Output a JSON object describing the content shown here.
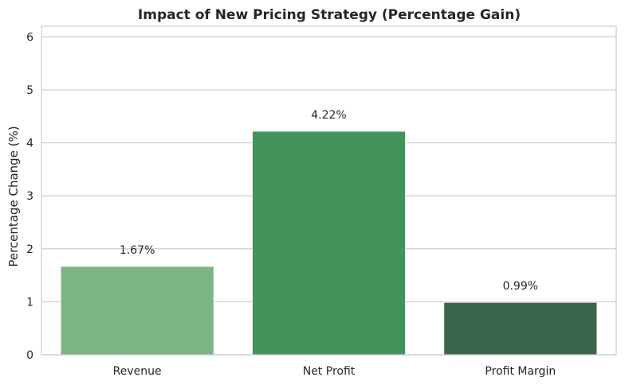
{
  "chart_data": {
    "type": "bar",
    "title": "Impact of New Pricing Strategy (Percentage Gain)",
    "xlabel": "",
    "ylabel": "Percentage Change (%)",
    "categories": [
      "Revenue",
      "Net Profit",
      "Profit Margin"
    ],
    "values": [
      1.67,
      4.22,
      0.99
    ],
    "data_labels": [
      "1.67%",
      "4.22%",
      "0.99%"
    ],
    "ylim": [
      0,
      6.2
    ],
    "yticks": [
      0,
      1,
      2,
      3,
      4,
      5,
      6
    ],
    "ytick_labels": [
      "0",
      "1",
      "2",
      "3",
      "4",
      "5",
      "6"
    ],
    "colors": [
      "#7bb583",
      "#43945c",
      "#3b654a"
    ],
    "grid": "horizontal",
    "legend": "none"
  }
}
